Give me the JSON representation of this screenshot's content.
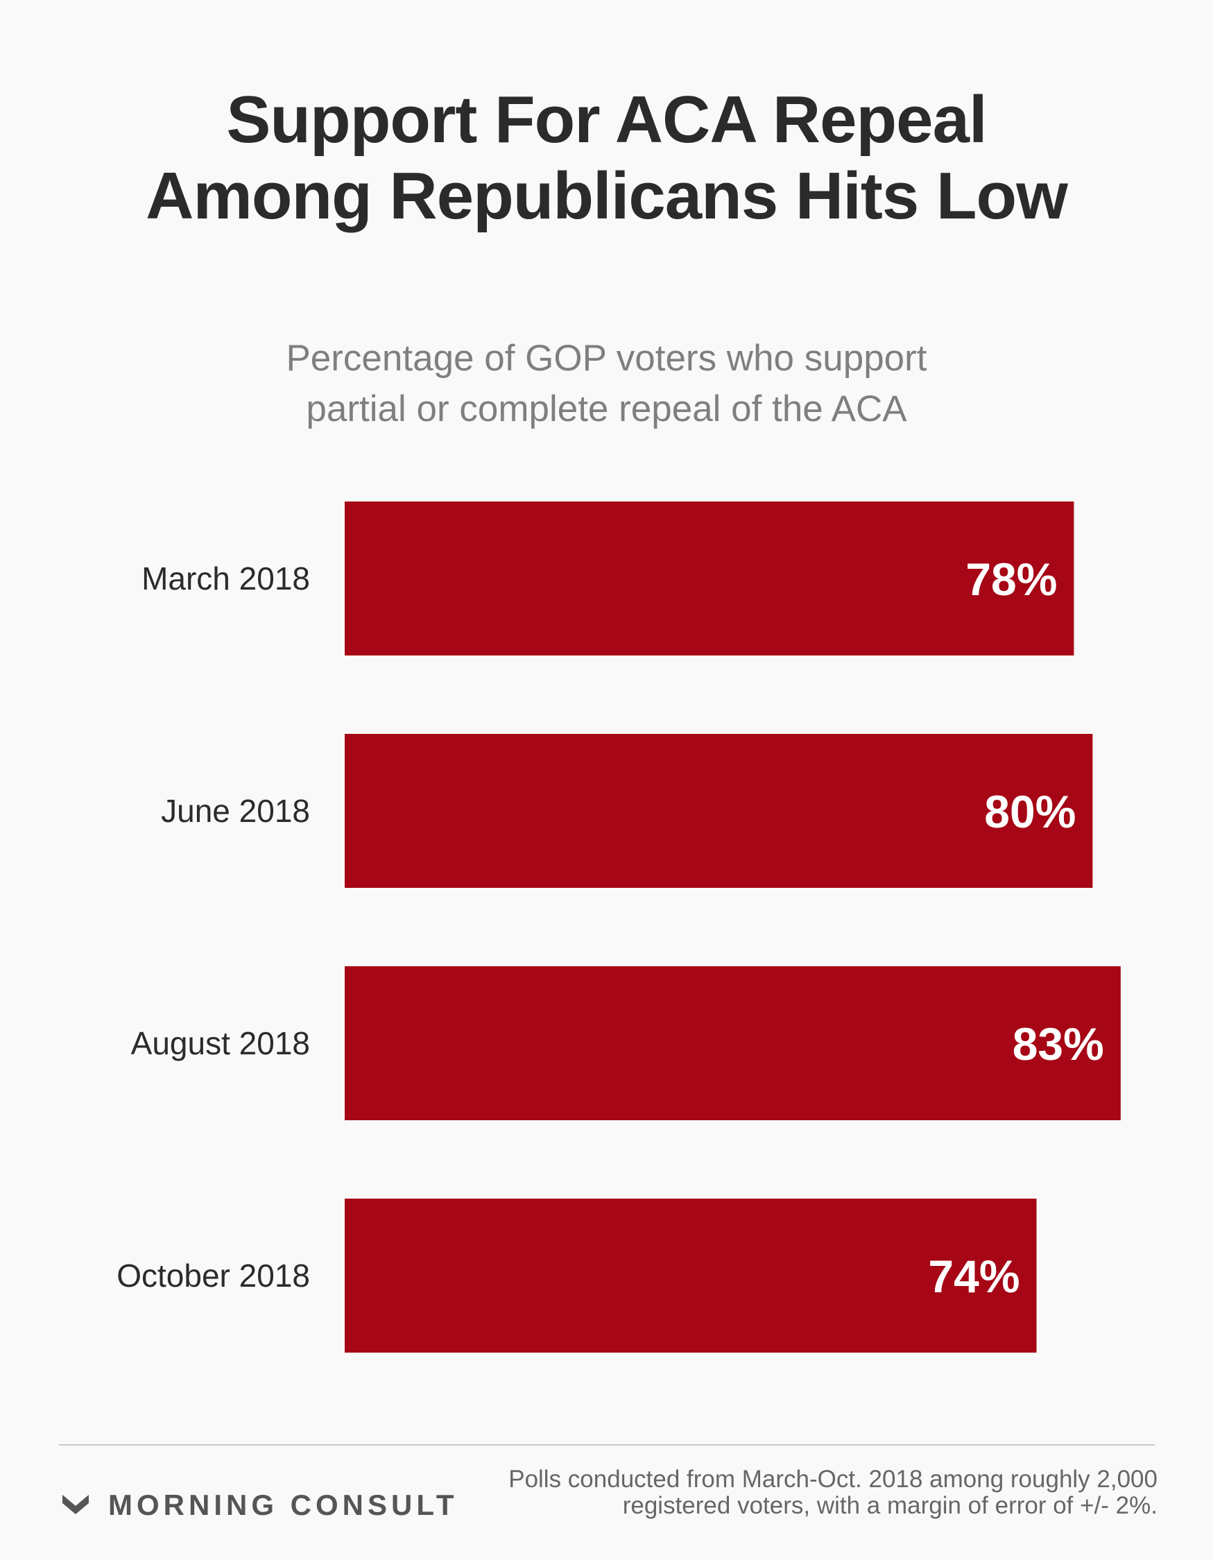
{
  "header": {
    "title_line1": "Support For ACA Repeal",
    "title_line2": "Among Republicans Hits Low"
  },
  "subheader": {
    "line1": "Percentage of GOP voters who support",
    "line2": "partial or complete repeal of the ACA"
  },
  "chart_data": {
    "type": "bar",
    "orientation": "horizontal",
    "title": "Support For ACA Repeal Among Republicans Hits Low",
    "subtitle": "Percentage of GOP voters who support partial or complete repeal of the ACA",
    "categories": [
      "March 2018",
      "June 2018",
      "August 2018",
      "October 2018"
    ],
    "values": [
      78,
      80,
      83,
      74
    ],
    "value_labels": [
      "78%",
      "80%",
      "83%",
      "74%"
    ],
    "xlabel": "",
    "ylabel": "",
    "unit": "%",
    "bar_color": "#a60615",
    "label_color": "#ffffff",
    "grid": false,
    "legend": "none"
  },
  "footer": {
    "logo_text": "MORNING CONSULT",
    "logo_icon": "morning-consult-chevron-icon",
    "note_line1": "Polls conducted from March-Oct. 2018 among roughly 2,000",
    "note_line2": "registered voters, with a margin of error of +/- 2%."
  }
}
